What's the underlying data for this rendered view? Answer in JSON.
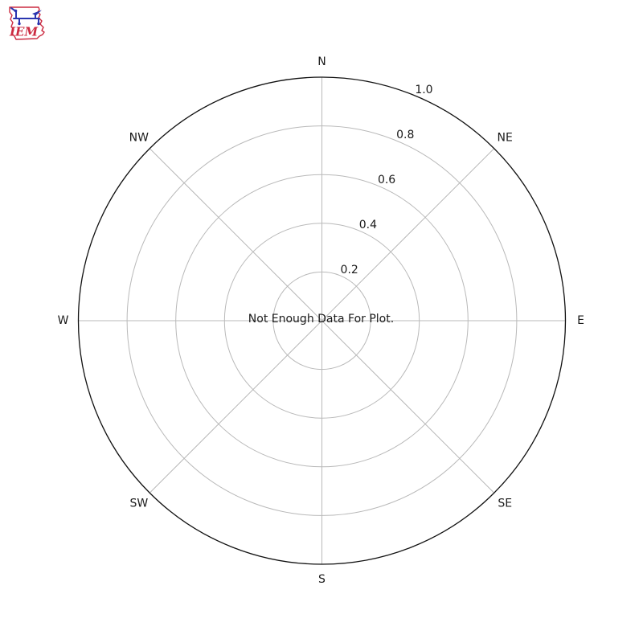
{
  "logo": {
    "text": "IEM",
    "colors": {
      "red": "#cc2b41",
      "blue": "#2a35b0"
    }
  },
  "chart_data": {
    "type": "polar",
    "title": "",
    "message": "Not Enough Data For Plot.",
    "direction_labels": [
      "N",
      "NE",
      "E",
      "SE",
      "S",
      "SW",
      "W",
      "NW"
    ],
    "direction_angles_deg": [
      0,
      45,
      90,
      135,
      180,
      225,
      270,
      315
    ],
    "radial_ticks": [
      0.2,
      0.4,
      0.6,
      0.8,
      1.0
    ],
    "radial_tick_labels": [
      "0.2",
      "0.4",
      "0.6",
      "0.8",
      "1.0"
    ],
    "rlim": [
      0,
      1
    ],
    "radial_label_angle_deg": 22.5,
    "grid": true,
    "legend": false,
    "series": [],
    "colors": {
      "grid": "#b9b9b9",
      "spine": "#111111",
      "text": "#1a1a1a",
      "background": "#ffffff"
    }
  }
}
